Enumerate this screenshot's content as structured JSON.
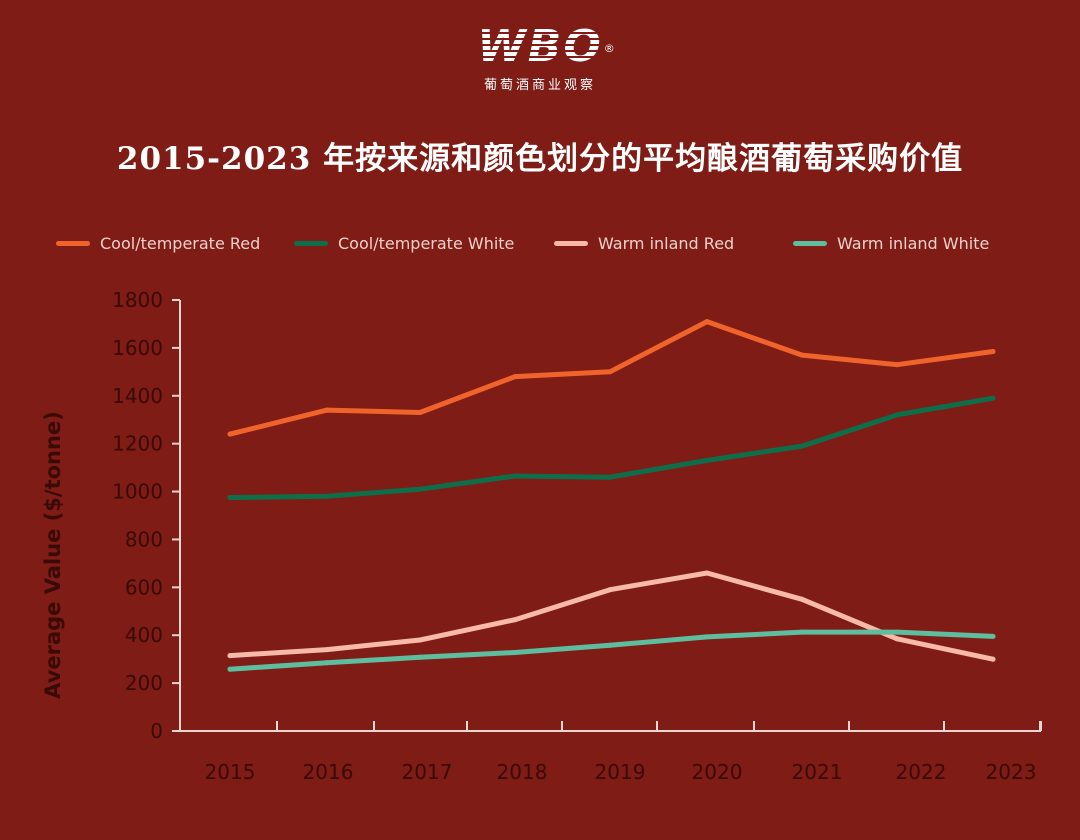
{
  "brand": {
    "logo_text": "WBO",
    "registered_mark": "®",
    "subtitle": "葡萄酒商业观察"
  },
  "chart_data": {
    "type": "line",
    "title": "2015-2023 年按来源和颜色划分的平均酿酒葡萄采购价值",
    "xlabel": "",
    "ylabel": "Average Value ($/tonne)",
    "x": [
      "2015",
      "2016",
      "2017",
      "2018",
      "2019",
      "2020",
      "2021",
      "2022",
      "2023"
    ],
    "ylim": [
      0,
      1800
    ],
    "yticks": [
      "0",
      "200",
      "400",
      "600",
      "800",
      "1000",
      "1200",
      "1400",
      "1600",
      "1800"
    ],
    "legend_position": "top",
    "series": [
      {
        "name": "Cool/temperate Red",
        "color": "#f0642c",
        "values": [
          1240,
          1340,
          1330,
          1480,
          1500,
          1710,
          1570,
          1530,
          1585
        ]
      },
      {
        "name": "Cool/temperate White",
        "color": "#0f6e4a",
        "values": [
          975,
          980,
          1010,
          1065,
          1060,
          1130,
          1190,
          1320,
          1390
        ]
      },
      {
        "name": "Warm inland Red",
        "color": "#f7b9a8",
        "values": [
          315,
          340,
          380,
          465,
          590,
          660,
          550,
          385,
          300
        ]
      },
      {
        "name": "Warm inland White",
        "color": "#5dbd9e",
        "values": [
          258,
          285,
          308,
          328,
          358,
          393,
          413,
          413,
          395
        ]
      }
    ]
  }
}
